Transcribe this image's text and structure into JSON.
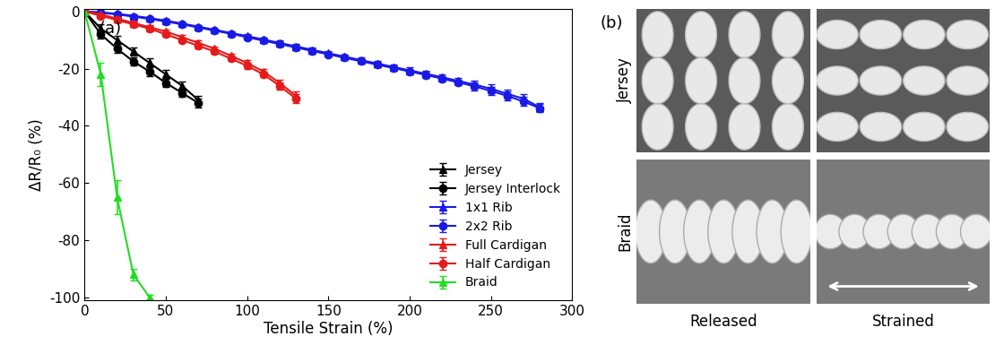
{
  "chart_data": {
    "type": "line",
    "annotations": [
      "(a)"
    ],
    "x_label": "Tensile Strain (%)",
    "y_label": "ΔR/R₀ (%)",
    "xlim": [
      0,
      300
    ],
    "xticks": [
      0,
      50,
      100,
      150,
      200,
      250,
      300
    ],
    "ylim": [
      -101,
      1
    ],
    "yticks": [
      -100,
      -80,
      -60,
      -40,
      -20,
      0
    ],
    "grid": false,
    "legend": "lower right",
    "series": [
      {
        "name": "Jersey",
        "color": "#000000",
        "marker": "triangle",
        "x": [
          0,
          10,
          20,
          30,
          40,
          50,
          60,
          70
        ],
        "values": [
          0,
          -6,
          -10,
          -14,
          -18,
          -22,
          -26,
          -31
        ],
        "errors": [
          0,
          1.5,
          1.5,
          1.5,
          1.5,
          1.5,
          1.5,
          1.5
        ]
      },
      {
        "name": "Jersey Interlock",
        "color": "#000000",
        "marker": "circle",
        "x": [
          0,
          10,
          20,
          30,
          40,
          50,
          60,
          70
        ],
        "values": [
          0,
          -8,
          -13,
          -17.5,
          -21,
          -25,
          -28.5,
          -32
        ],
        "errors": [
          0,
          1.5,
          1.5,
          1.5,
          1.5,
          1.5,
          1.5,
          1.5
        ]
      },
      {
        "name": "1x1 Rib",
        "color": "#1a1ae6",
        "marker": "triangle",
        "x": [
          0,
          10,
          20,
          30,
          40,
          50,
          60,
          70,
          80,
          90,
          100,
          110,
          120,
          130,
          140,
          150,
          160,
          170,
          180,
          190,
          200,
          210,
          220,
          230,
          240,
          250,
          260,
          270,
          280
        ],
        "values": [
          0,
          -0.3,
          -0.8,
          -1.5,
          -2.3,
          -3.2,
          -4.2,
          -5.3,
          -6.4,
          -7.5,
          -8.6,
          -9.8,
          -11,
          -12.2,
          -13.4,
          -14.6,
          -15.8,
          -17,
          -18.2,
          -19.4,
          -20.6,
          -21.8,
          -23,
          -24.3,
          -25.6,
          -27,
          -28.8,
          -30.5,
          -33.5
        ],
        "errors": [
          0,
          0.5,
          0.5,
          0.5,
          0.5,
          0.5,
          0.5,
          0.5,
          0.5,
          0.5,
          0.8,
          0.8,
          0.8,
          0.8,
          0.8,
          0.8,
          0.8,
          0.8,
          1,
          1,
          1,
          1,
          1,
          1,
          1.5,
          1.5,
          1.5,
          1.5,
          1.5
        ]
      },
      {
        "name": "2x2 Rib",
        "color": "#1a1ae6",
        "marker": "circle",
        "x": [
          0,
          10,
          20,
          30,
          40,
          50,
          60,
          70,
          80,
          90,
          100,
          110,
          120,
          130,
          140,
          150,
          160,
          170,
          180,
          190,
          200,
          210,
          220,
          230,
          240,
          250,
          260,
          270,
          280
        ],
        "values": [
          0,
          -0.5,
          -1,
          -1.8,
          -2.6,
          -3.5,
          -4.5,
          -5.6,
          -6.7,
          -7.8,
          -9,
          -10.2,
          -11.4,
          -12.6,
          -13.8,
          -15,
          -16.2,
          -17.4,
          -18.6,
          -19.8,
          -21,
          -22.2,
          -23.5,
          -24.8,
          -26.2,
          -27.8,
          -29.5,
          -31.5,
          -33.8
        ],
        "errors": [
          0,
          0.5,
          0.5,
          0.5,
          0.5,
          0.5,
          0.5,
          0.5,
          0.5,
          0.5,
          0.8,
          0.8,
          0.8,
          0.8,
          0.8,
          0.8,
          0.8,
          0.8,
          1,
          1,
          1,
          1,
          1,
          1,
          1.5,
          1.5,
          1.5,
          1.5,
          1.5
        ]
      },
      {
        "name": "Full Cardigan",
        "color": "#e61a1a",
        "marker": "triangle",
        "x": [
          0,
          10,
          20,
          30,
          40,
          50,
          60,
          70,
          80,
          90,
          100,
          110,
          120,
          130
        ],
        "values": [
          0,
          -1,
          -2.5,
          -4,
          -5.5,
          -7,
          -9,
          -11,
          -13,
          -15.5,
          -18,
          -21,
          -25,
          -29.5
        ],
        "errors": [
          0,
          0.8,
          0.8,
          0.8,
          0.8,
          0.8,
          0.8,
          0.8,
          0.8,
          0.8,
          1,
          1,
          1.2,
          1.5
        ]
      },
      {
        "name": "Half Cardigan",
        "color": "#e61a1a",
        "marker": "circle",
        "x": [
          0,
          10,
          20,
          30,
          40,
          50,
          60,
          70,
          80,
          90,
          100,
          110,
          120,
          130
        ],
        "values": [
          0,
          -1.5,
          -3,
          -4.5,
          -6,
          -8,
          -10,
          -12,
          -14,
          -16.5,
          -19,
          -22,
          -26,
          -30.5
        ],
        "errors": [
          0,
          0.8,
          0.8,
          0.8,
          0.8,
          0.8,
          0.8,
          0.8,
          0.8,
          0.8,
          1,
          1,
          1.2,
          1.5
        ]
      },
      {
        "name": "Braid",
        "color": "#22dd22",
        "marker": "triangle",
        "x": [
          0,
          10,
          20,
          30,
          40
        ],
        "values": [
          0,
          -22,
          -65,
          -92,
          -100
        ],
        "errors": [
          0,
          4,
          6,
          2,
          1
        ]
      }
    ]
  },
  "panel_b": {
    "label": "(b)",
    "rows": [
      "Jersey",
      "Braid"
    ],
    "columns": [
      "Released",
      "Strained"
    ]
  }
}
